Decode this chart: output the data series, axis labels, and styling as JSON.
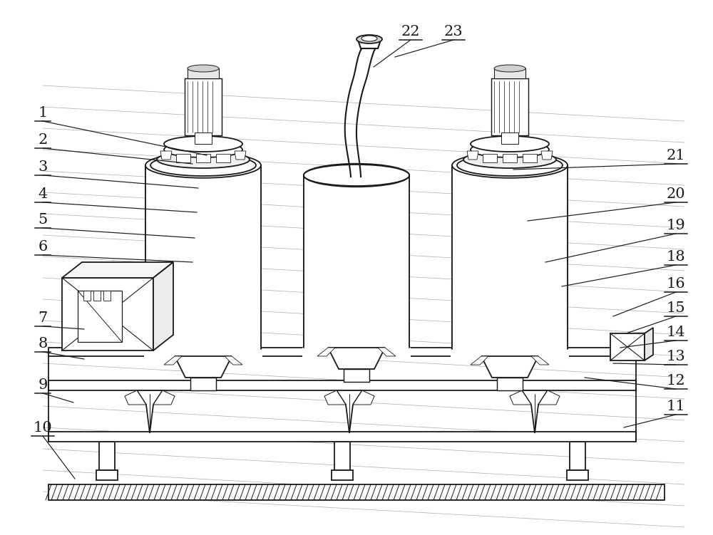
{
  "bg_color": "#ffffff",
  "line_color": "#1a1a1a",
  "figsize": [
    10.0,
    7.51
  ],
  "label_fontsize": 15,
  "annotations": [
    [
      "1",
      60,
      158,
      290,
      218
    ],
    [
      "2",
      60,
      196,
      270,
      230
    ],
    [
      "3",
      60,
      234,
      278,
      264
    ],
    [
      "4",
      60,
      272,
      276,
      298
    ],
    [
      "5",
      60,
      308,
      273,
      334
    ],
    [
      "6",
      60,
      346,
      270,
      368
    ],
    [
      "7",
      60,
      446,
      118,
      462
    ],
    [
      "8",
      60,
      482,
      118,
      504
    ],
    [
      "9",
      60,
      540,
      103,
      565
    ],
    [
      "10",
      60,
      600,
      105,
      672
    ],
    [
      "11",
      948,
      570,
      875,
      600
    ],
    [
      "12",
      948,
      534,
      820,
      530
    ],
    [
      "13",
      948,
      500,
      860,
      510
    ],
    [
      "14",
      948,
      466,
      870,
      488
    ],
    [
      "15",
      948,
      432,
      878,
      468
    ],
    [
      "16",
      948,
      398,
      860,
      444
    ],
    [
      "18",
      948,
      360,
      788,
      402
    ],
    [
      "19",
      948,
      316,
      765,
      368
    ],
    [
      "20",
      948,
      272,
      740,
      310
    ],
    [
      "21",
      948,
      218,
      720,
      238
    ],
    [
      "22",
      576,
      44,
      524,
      94
    ],
    [
      "23",
      636,
      44,
      554,
      80
    ]
  ]
}
